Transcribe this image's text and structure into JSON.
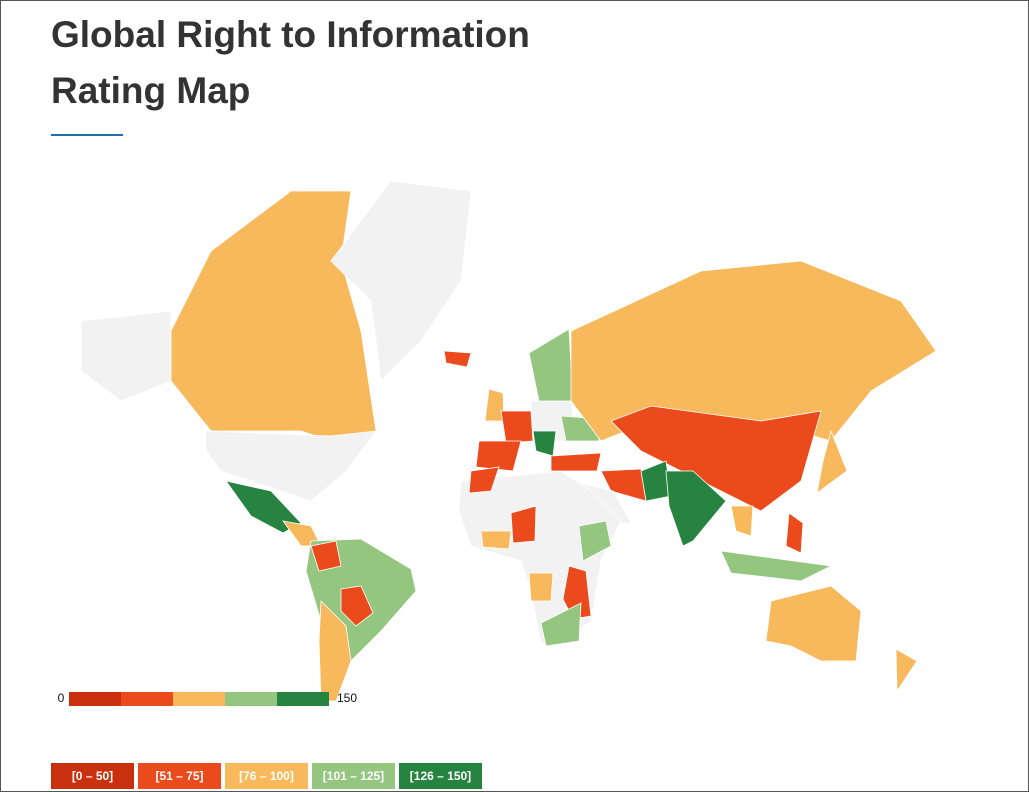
{
  "header": {
    "title": "Global Right to Information Rating Map"
  },
  "map": {
    "scale": {
      "min": 0,
      "max": 150
    },
    "legend": [
      {
        "label": "[0 – 50]",
        "color": "#c9300e"
      },
      {
        "label": "[51 – 75]",
        "color": "#ea4a1c"
      },
      {
        "label": "[76 – 100]",
        "color": "#f8b95c"
      },
      {
        "label": "[101 – 125]",
        "color": "#95c67f"
      },
      {
        "label": "[126 – 150]",
        "color": "#268440"
      }
    ]
  }
}
